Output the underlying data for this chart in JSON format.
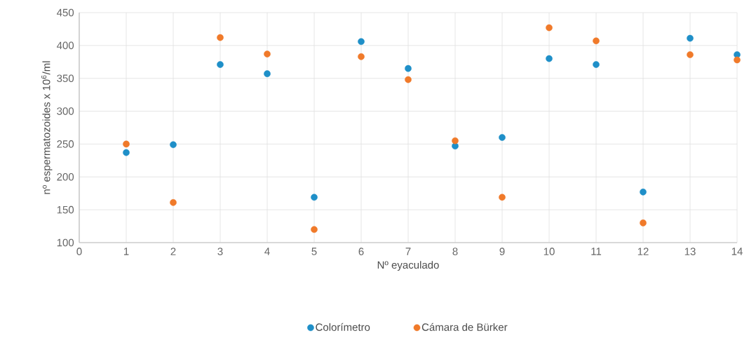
{
  "chart_data": {
    "type": "scatter",
    "xlabel": "Nº eyaculado",
    "ylabel": "nº espermatozoides x 10$^{6}$/ml",
    "x": [
      1,
      2,
      3,
      4,
      5,
      6,
      7,
      8,
      9,
      10,
      11,
      12,
      13,
      14
    ],
    "series": [
      {
        "name": "Colorímetro",
        "color": "#1f8fc8",
        "values": [
          237,
          249,
          371,
          357,
          169,
          406,
          365,
          247,
          260,
          380,
          371,
          177,
          411,
          386
        ]
      },
      {
        "name": "Cámara de Bürker",
        "color": "#f07a2a",
        "values": [
          250,
          161,
          412,
          387,
          120,
          383,
          348,
          255,
          169,
          427,
          407,
          130,
          386,
          378
        ]
      }
    ],
    "xlim": [
      0,
      14
    ],
    "xticks": [
      0,
      1,
      2,
      3,
      4,
      5,
      6,
      7,
      8,
      9,
      10,
      11,
      12,
      13,
      14
    ],
    "ylim": [
      100,
      450
    ],
    "yticks": [
      100,
      150,
      200,
      250,
      300,
      350,
      400,
      450
    ],
    "grid": true,
    "legend": "bottom",
    "marker": "circle"
  }
}
